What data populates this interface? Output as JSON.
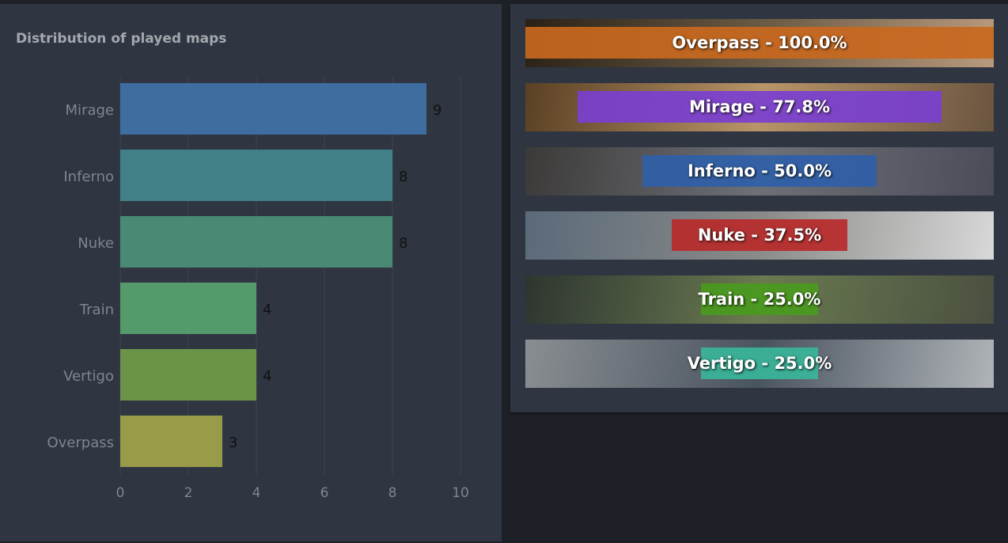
{
  "chart_data": {
    "type": "bar",
    "orientation": "horizontal",
    "title": "Distribution of played maps",
    "categories": [
      "Mirage",
      "Inferno",
      "Nuke",
      "Train",
      "Vertigo",
      "Overpass"
    ],
    "values": [
      9,
      8,
      8,
      4,
      4,
      3
    ],
    "colors": [
      "#3e6d9f",
      "#418087",
      "#4a8a74",
      "#559a6b",
      "#6c9449",
      "#989b48"
    ],
    "xlim": [
      0,
      10.5
    ],
    "xticks": [
      "0",
      "2",
      "4",
      "6",
      "8",
      "10"
    ],
    "grid": true
  },
  "winrates": [
    {
      "label": "Overpass - 100.0%",
      "pct": 100,
      "color": "#c8681e",
      "bg": [
        "#2a2116",
        "#6b5a44",
        "#b99a7d"
      ]
    },
    {
      "label": "Mirage - 77.8%",
      "pct": 77.8,
      "color": "#7a3fd0",
      "bg": [
        "#5a4024",
        "#b89468",
        "#6b5540"
      ]
    },
    {
      "label": "Inferno - 50.0%",
      "pct": 50,
      "color": "#2f5fa8",
      "bg": [
        "#3c3a38",
        "#6e7078",
        "#4a4c58"
      ]
    },
    {
      "label": "Nuke - 37.5%",
      "pct": 37.5,
      "color": "#b82a2a",
      "bg": [
        "#5a6a7a",
        "#8a8a88",
        "#d8d8d8"
      ]
    },
    {
      "label": "Train - 25.0%",
      "pct": 25,
      "color": "#4a9a1e",
      "bg": [
        "#2e3530",
        "#6a7a50",
        "#4a5040"
      ]
    },
    {
      "label": "Vertigo - 25.0%",
      "pct": 25,
      "color": "#3ab59a",
      "bg": [
        "#8a8e92",
        "#4a5460",
        "#b0b4b8"
      ]
    }
  ]
}
